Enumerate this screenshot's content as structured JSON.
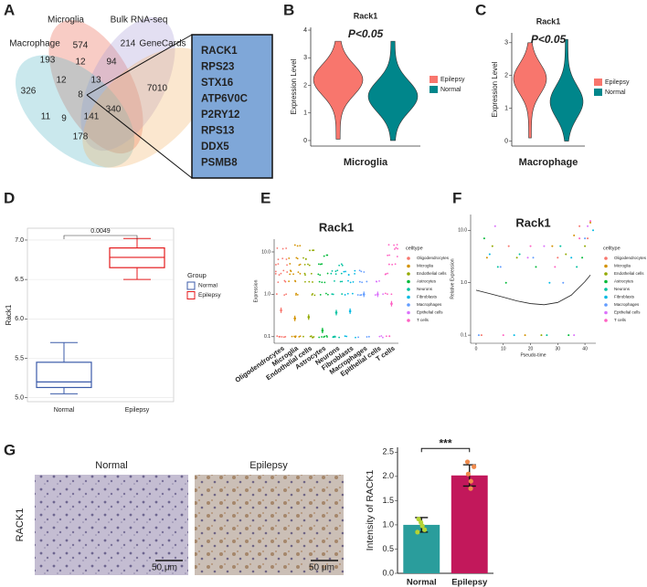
{
  "chart_data": [
    {
      "type": "venn",
      "label": "A",
      "sets": [
        {
          "name": "Microglia",
          "color": "#e8604c"
        },
        {
          "name": "Bulk RNA-seq",
          "color": "#a99ad6"
        },
        {
          "name": "Macrophage",
          "color": "#5bb6c8"
        },
        {
          "name": "GeneCards",
          "color": "#f2b46a"
        }
      ],
      "regions": [
        574,
        214,
        193,
        12,
        94,
        326,
        12,
        13,
        7010,
        8,
        11,
        340,
        9,
        141,
        178
      ],
      "genes": [
        "RACK1",
        "RPS23",
        "STX16",
        "ATP6V0C",
        "P2RY12",
        "RPS13",
        "DDX5",
        "PSMB8"
      ],
      "box_color": "#7fa7d8"
    },
    {
      "type": "violin",
      "label": "B",
      "title": "Rack1",
      "annotation": "P<0.05",
      "y_label": "Expression Level",
      "x_label": "Microglia",
      "ylim": [
        -0.2,
        4.1
      ],
      "yticks": [
        0,
        1,
        2,
        3,
        4
      ],
      "series": [
        {
          "name": "Epilepsy",
          "color": "#f8766d",
          "min": 0.05,
          "median": 2.2,
          "max": 3.6
        },
        {
          "name": "Normal",
          "color": "#00868b",
          "min": 0,
          "median": 1.6,
          "max": 3.6
        }
      ]
    },
    {
      "type": "violin",
      "label": "C",
      "title": "Rack1",
      "annotation": "P<0.05",
      "y_label": "Expression Level",
      "x_label": "Macrophage",
      "ylim": [
        -0.15,
        3.3
      ],
      "yticks": [
        0,
        1,
        2,
        3
      ],
      "series": [
        {
          "name": "Epilepsy",
          "color": "#f8766d",
          "min": 0.1,
          "median": 1.9,
          "max": 3.0
        },
        {
          "name": "Normal",
          "color": "#00868b",
          "min": 0,
          "median": 1.2,
          "max": 3.1
        }
      ]
    },
    {
      "type": "box",
      "label": "D",
      "y_label": "Rack1",
      "annotation": "0.0049",
      "legend_title": "Group",
      "categories": [
        "Normal",
        "Epilepsy"
      ],
      "ylim": [
        4.95,
        7.15
      ],
      "yticks": [
        {
          "value": 5,
          "label": "5.0"
        },
        {
          "value": 5.5,
          "label": "5.5"
        },
        {
          "value": 6,
          "label": "6.0"
        },
        {
          "value": 6.5,
          "label": "6.5"
        },
        {
          "value": 7,
          "label": "7.0"
        }
      ],
      "grid": true,
      "series": [
        {
          "name": "Normal",
          "color": "#3b5ba9",
          "min": 5.05,
          "q1": 5.13,
          "median": 5.2,
          "q3": 5.45,
          "max": 5.7
        },
        {
          "name": "Epilepsy",
          "color": "#e41a1c",
          "min": 6.5,
          "q1": 6.65,
          "median": 6.78,
          "q3": 6.9,
          "max": 7.02
        }
      ]
    },
    {
      "type": "strip",
      "label": "E",
      "title": "Rack1",
      "y_label": "Expression",
      "legend_title": "celltype",
      "log_y": true,
      "ylim": [
        0.07,
        20
      ],
      "yticks": [
        0.1,
        {
          "value": 1,
          "label": "1.0"
        },
        {
          "value": 10,
          "label": "10.0"
        }
      ],
      "series": [
        {
          "name": "Oligodendrocytes",
          "color": "#f8766d",
          "values": [
            0.1,
            0.1,
            1,
            2,
            3,
            3.5,
            5,
            7,
            12
          ],
          "mean": 0.42
        },
        {
          "name": "Microglia",
          "color": "#d39200",
          "values": [
            0.1,
            0.1,
            1,
            2,
            3,
            3.5,
            5,
            7,
            14
          ],
          "mean": 0.27
        },
        {
          "name": "Endothelial cells",
          "color": "#93aa00",
          "values": [
            0.1,
            0.1,
            1,
            2,
            3,
            5,
            7,
            11
          ],
          "mean": 0.29
        },
        {
          "name": "Astrocytes",
          "color": "#00ba38",
          "values": [
            0.1,
            0.1,
            1,
            2,
            3,
            5,
            8
          ],
          "mean": 0.14
        },
        {
          "name": "Neurons",
          "color": "#00c19f",
          "values": [
            0.1,
            0.1,
            1,
            2,
            3,
            3.5,
            5
          ],
          "mean": 0.37
        },
        {
          "name": "Fibroblasts",
          "color": "#00b9e3",
          "values": [
            0.1,
            1,
            2,
            3,
            3.5
          ],
          "mean": 0.4
        },
        {
          "name": "Macrophages",
          "color": "#619cff",
          "values": [
            0.1,
            1,
            2,
            3.5
          ],
          "mean": 1
        },
        {
          "name": "Epithelial cells",
          "color": "#db72fb",
          "values": [
            0.1,
            1,
            2
          ],
          "mean": 1
        },
        {
          "name": "T cells",
          "color": "#ff61c3",
          "values": [
            0.1,
            1,
            3,
            5,
            8,
            12,
            15
          ],
          "mean": 0.6
        }
      ]
    },
    {
      "type": "scatter",
      "label": "F",
      "title": "Rack1",
      "y_label": "Relative Expression",
      "x_label": "Pseudo-time",
      "legend_title": "celltype",
      "log_y": true,
      "xlim": [
        -2,
        44
      ],
      "xticks": [
        0,
        10,
        20,
        30,
        40
      ],
      "ylim": [
        0.07,
        20
      ],
      "yticks": [
        0.1,
        {
          "value": 1,
          "label": "1.0"
        },
        {
          "value": 10,
          "label": "10.0"
        }
      ],
      "series": [
        {
          "name": "Oligodendrocytes",
          "color": "#f8766d",
          "x": [
            2,
            12,
            30,
            38,
            41
          ],
          "values": [
            0.1,
            5,
            3,
            12,
            7
          ]
        },
        {
          "name": "Microglia",
          "color": "#d39200",
          "x": [
            4,
            18,
            28,
            36,
            42
          ],
          "values": [
            3,
            0.1,
            5,
            8,
            14
          ]
        },
        {
          "name": "Endothelial cells",
          "color": "#93aa00",
          "x": [
            6,
            15,
            24,
            33,
            40
          ],
          "values": [
            5,
            3,
            0.1,
            3.5,
            5
          ]
        },
        {
          "name": "Astrocytes",
          "color": "#00ba38",
          "x": [
            3,
            11,
            22,
            34,
            39
          ],
          "values": [
            7,
            1,
            2,
            0.1,
            3
          ]
        },
        {
          "name": "Neurons",
          "color": "#00c19f",
          "x": [
            8,
            16,
            26,
            31,
            37
          ],
          "values": [
            2,
            3.5,
            0.1,
            5,
            2
          ]
        },
        {
          "name": "Fibroblasts",
          "color": "#00b9e3",
          "x": [
            5,
            14,
            27,
            35,
            43
          ],
          "values": [
            3.5,
            0.1,
            1,
            3,
            10
          ]
        },
        {
          "name": "Macrophages",
          "color": "#619cff",
          "x": [
            1,
            9,
            21,
            32,
            40
          ],
          "values": [
            0.1,
            2,
            3,
            1,
            7
          ]
        },
        {
          "name": "Epithelial cells",
          "color": "#db72fb",
          "x": [
            7,
            19,
            25,
            36,
            41
          ],
          "values": [
            12,
            3,
            5,
            0.1,
            12
          ]
        },
        {
          "name": "T cells",
          "color": "#ff61c3",
          "x": [
            10,
            20,
            29,
            38,
            42
          ],
          "values": [
            0.1,
            5,
            2,
            7,
            15
          ]
        }
      ],
      "trend": {
        "x": [
          0,
          5,
          10,
          15,
          20,
          25,
          30,
          35,
          40,
          42
        ],
        "values": [
          0.72,
          0.62,
          0.53,
          0.45,
          0.4,
          0.38,
          0.42,
          0.58,
          1.05,
          1.4
        ]
      }
    },
    {
      "type": "bar",
      "label": "G",
      "image_labels": [
        "Normal",
        "Epilepsy"
      ],
      "image_stain": "RACK1",
      "scale_bar": "50 μm",
      "y_label": "Intensity of RACK1",
      "annotation": "***",
      "categories": [
        "Normal",
        "Epilepsy"
      ],
      "values": [
        1.0,
        2.02
      ],
      "errors": [
        0.15,
        0.22
      ],
      "colors": [
        "#2a9d9c",
        "#c2185b"
      ],
      "points": [
        [
          0.85,
          0.9,
          0.98,
          1.05,
          1.12
        ],
        [
          1.75,
          1.9,
          2.05,
          2.2,
          2.3
        ]
      ],
      "point_colors": [
        "#b5d334",
        "#f08a4b"
      ],
      "ylim": [
        0,
        2.6
      ],
      "yticks": [
        {
          "value": 0,
          "label": "0.0"
        },
        {
          "value": 0.5,
          "label": "0.5"
        },
        {
          "value": 1,
          "label": "1.0"
        },
        {
          "value": 1.5,
          "label": "1.5"
        },
        {
          "value": 2,
          "label": "2.0"
        },
        {
          "value": 2.5,
          "label": "2.5"
        }
      ]
    }
  ]
}
